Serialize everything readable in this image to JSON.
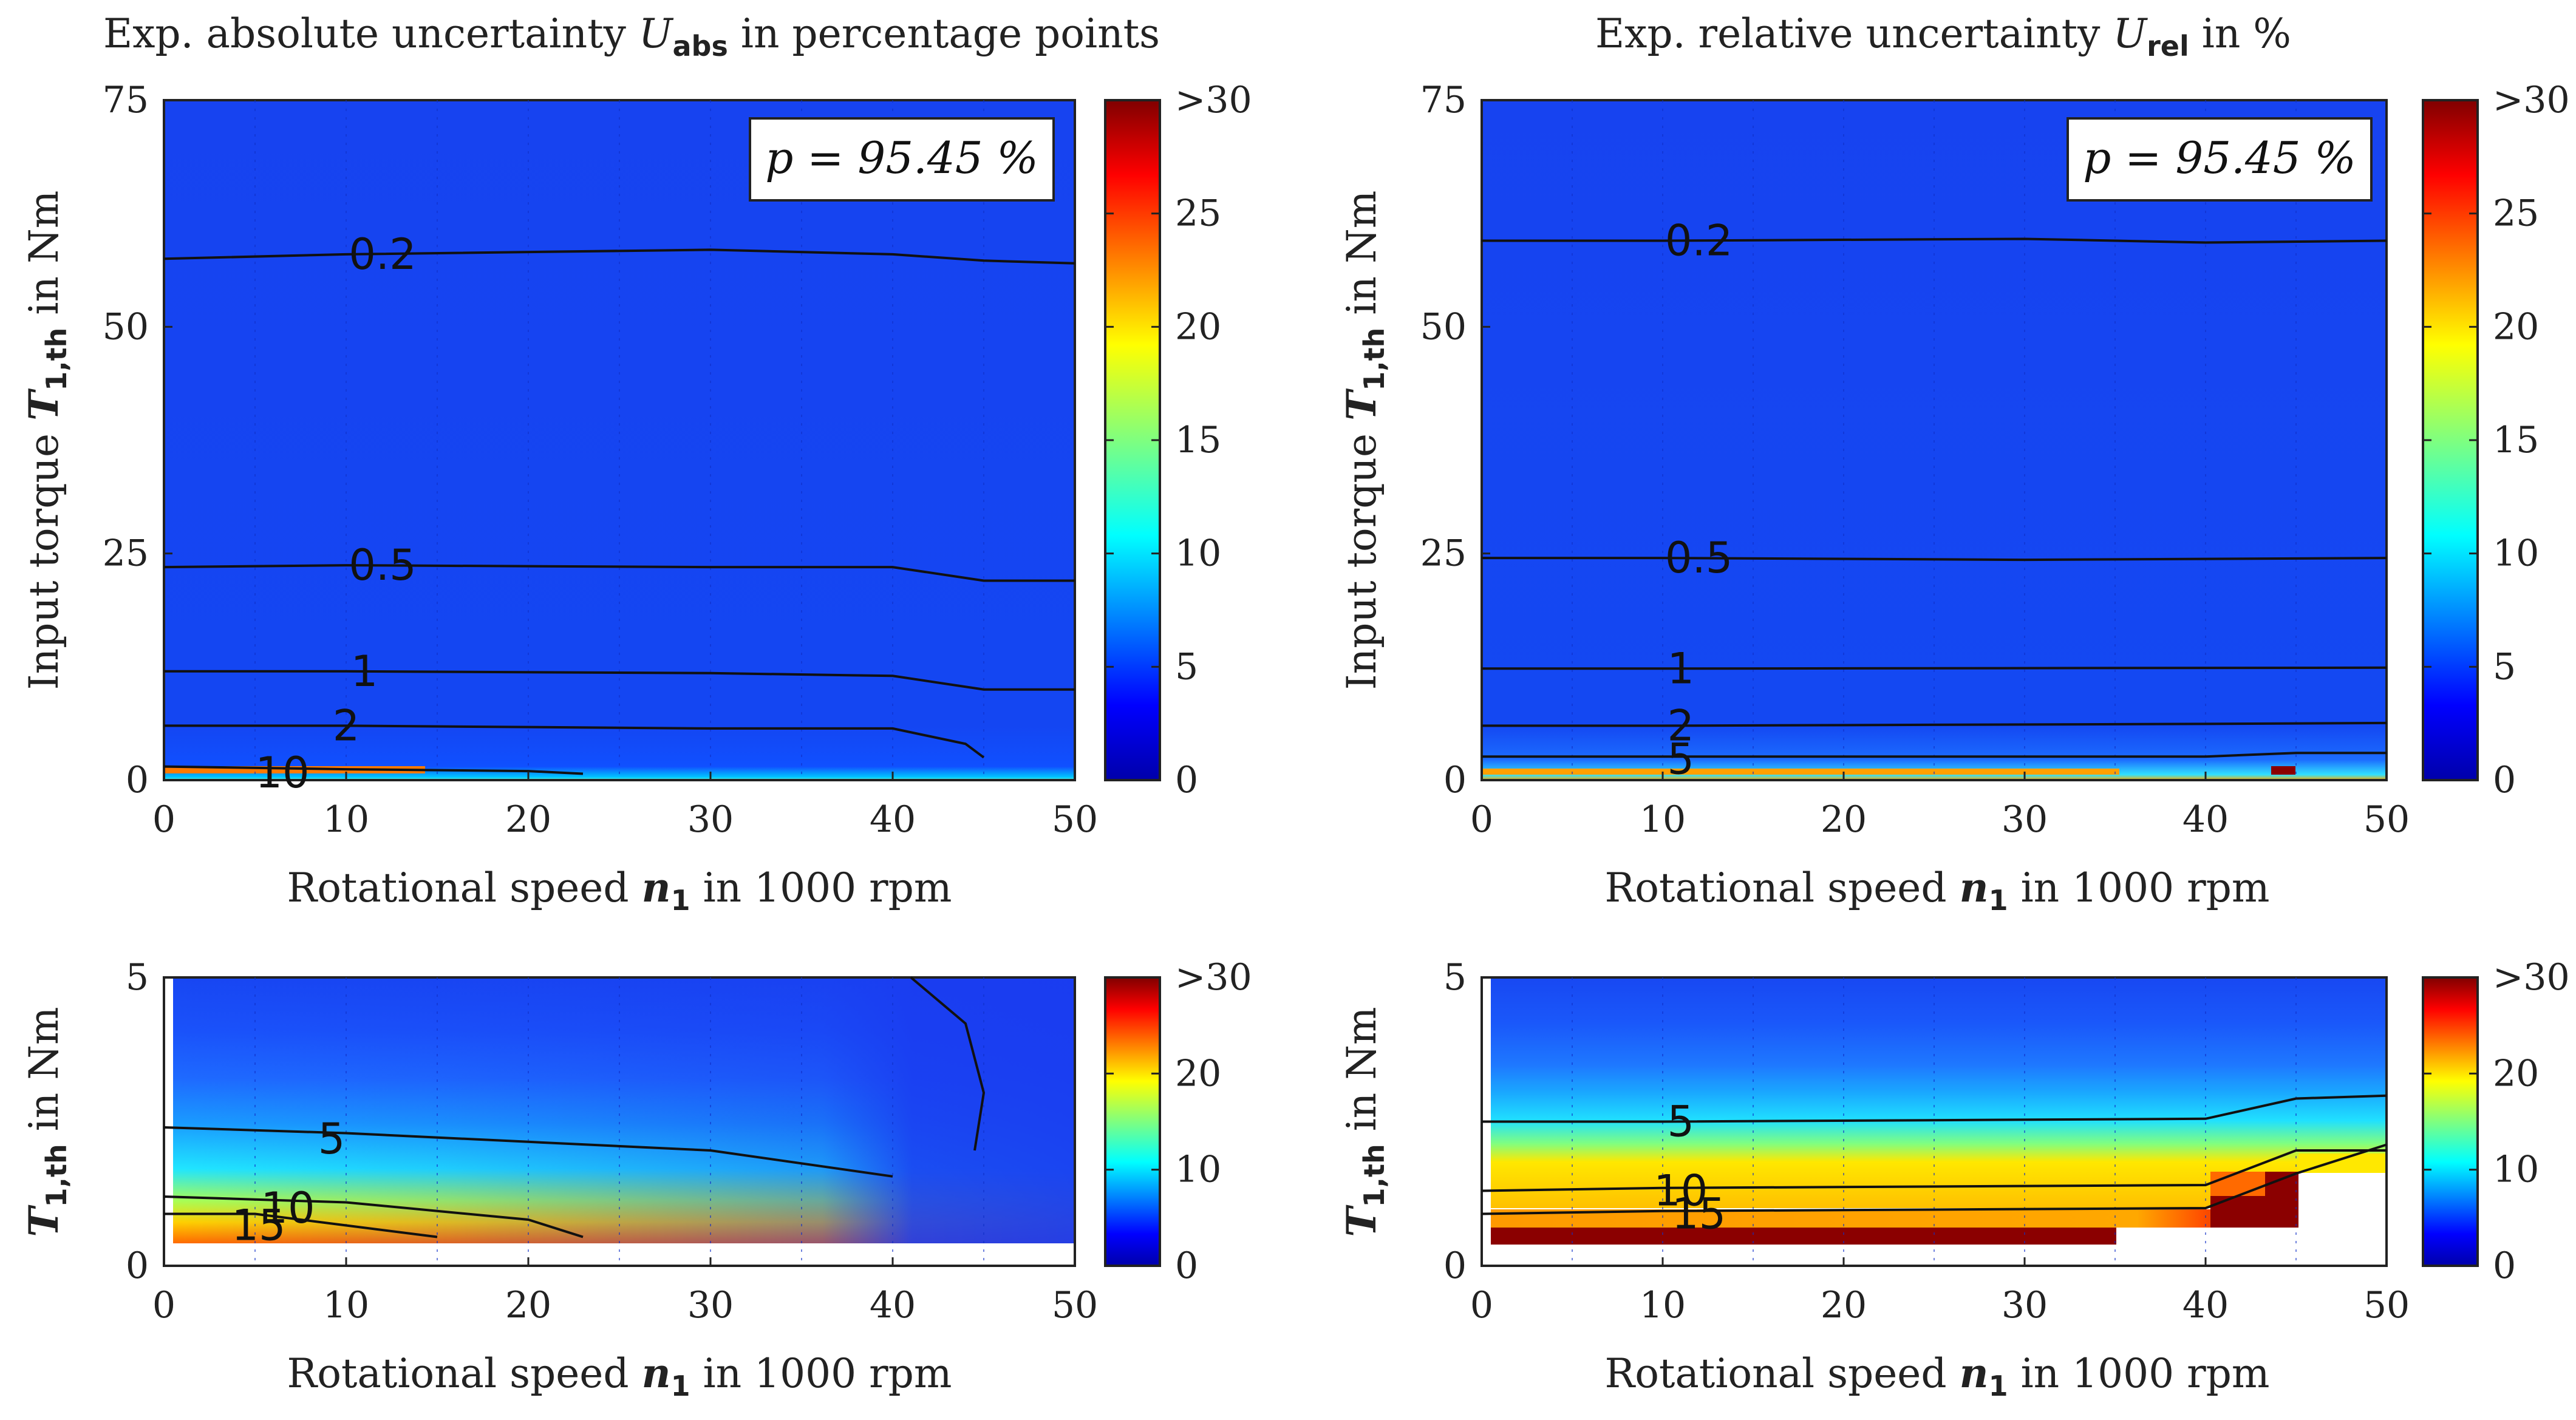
{
  "chart_data": [
    {
      "id": "abs_top",
      "type": "heatmap",
      "title_prefix": "Exp. absolute uncertainty ",
      "title_sym": "U",
      "title_sub": "abs",
      "title_suffix": " in percentage points",
      "xlabel_prefix": "Rotational speed ",
      "xlabel_sym": "n",
      "xlabel_sub": "1",
      "xlabel_suffix": " in 1000 rpm",
      "ylabel_prefix": "Input torque ",
      "ylabel_sym": "T",
      "ylabel_sub": "1,th",
      "ylabel_suffix": " in Nm",
      "xlim": [
        0,
        50
      ],
      "ylim": [
        0,
        75
      ],
      "xticks": [
        0,
        10,
        20,
        30,
        40,
        50
      ],
      "yticks": [
        0,
        25,
        50,
        75
      ],
      "colorbar": {
        "min": 0,
        "max": 30,
        "ticks": [
          "0",
          "5",
          "10",
          "15",
          "20",
          "25",
          ">30"
        ]
      },
      "annotation": "p = 95.45 %",
      "contours": [
        {
          "level": "0.2",
          "points": [
            [
              0,
              57.5
            ],
            [
              10,
              58
            ],
            [
              30,
              58.5
            ],
            [
              40,
              58
            ],
            [
              45,
              57.3
            ],
            [
              50,
              57
            ]
          ]
        },
        {
          "level": "0.5",
          "points": [
            [
              0,
              23.5
            ],
            [
              10,
              23.7
            ],
            [
              30,
              23.5
            ],
            [
              40,
              23.5
            ],
            [
              45,
              22
            ],
            [
              50,
              22
            ]
          ]
        },
        {
          "level": "1",
          "points": [
            [
              0,
              12
            ],
            [
              10,
              12
            ],
            [
              30,
              11.8
            ],
            [
              40,
              11.5
            ],
            [
              45,
              10
            ],
            [
              50,
              10
            ]
          ]
        },
        {
          "level": "2",
          "points": [
            [
              0,
              6
            ],
            [
              10,
              6
            ],
            [
              30,
              5.7
            ],
            [
              40,
              5.7
            ],
            [
              44,
              4
            ],
            [
              45,
              2.5
            ]
          ]
        },
        {
          "level": "10",
          "points": [
            [
              0,
              1.5
            ],
            [
              10,
              1.2
            ],
            [
              20,
              1
            ],
            [
              23,
              0.7
            ]
          ]
        }
      ],
      "contour_labels": [
        {
          "text": "0.2",
          "x": 12,
          "y": 58
        },
        {
          "text": "0.5",
          "x": 12,
          "y": 23.7
        },
        {
          "text": "1",
          "x": 11,
          "y": 12
        },
        {
          "text": "2",
          "x": 10,
          "y": 6
        },
        {
          "text": "10",
          "x": 6.5,
          "y": 0.8
        }
      ]
    },
    {
      "id": "rel_top",
      "type": "heatmap",
      "title_prefix": "Exp. relative uncertainty ",
      "title_sym": "U",
      "title_sub": "rel",
      "title_suffix": " in %",
      "xlabel_prefix": "Rotational speed ",
      "xlabel_sym": "n",
      "xlabel_sub": "1",
      "xlabel_suffix": " in 1000 rpm",
      "ylabel_prefix": "Input torque ",
      "ylabel_sym": "T",
      "ylabel_sub": "1,th",
      "ylabel_suffix": " in Nm",
      "xlim": [
        0,
        50
      ],
      "ylim": [
        0,
        75
      ],
      "xticks": [
        0,
        10,
        20,
        30,
        40,
        50
      ],
      "yticks": [
        0,
        25,
        50,
        75
      ],
      "colorbar": {
        "min": 0,
        "max": 30,
        "ticks": [
          "0",
          "5",
          "10",
          "15",
          "20",
          "25",
          ">30"
        ]
      },
      "annotation": "p = 95.45 %",
      "contours": [
        {
          "level": "0.2",
          "points": [
            [
              0,
              59.5
            ],
            [
              10,
              59.5
            ],
            [
              30,
              59.7
            ],
            [
              40,
              59.3
            ],
            [
              50,
              59.5
            ]
          ]
        },
        {
          "level": "0.5",
          "points": [
            [
              0,
              24.5
            ],
            [
              10,
              24.5
            ],
            [
              30,
              24.3
            ],
            [
              50,
              24.5
            ]
          ]
        },
        {
          "level": "1",
          "points": [
            [
              0,
              12.3
            ],
            [
              10,
              12.3
            ],
            [
              50,
              12.4
            ]
          ]
        },
        {
          "level": "2",
          "points": [
            [
              0,
              6
            ],
            [
              10,
              6
            ],
            [
              40,
              6.2
            ],
            [
              50,
              6.3
            ]
          ]
        },
        {
          "level": "5",
          "points": [
            [
              0,
              2.6
            ],
            [
              10,
              2.6
            ],
            [
              40,
              2.6
            ],
            [
              45,
              3
            ],
            [
              50,
              3
            ]
          ]
        }
      ],
      "contour_labels": [
        {
          "text": "0.2",
          "x": 12,
          "y": 59.5
        },
        {
          "text": "0.5",
          "x": 12,
          "y": 24.5
        },
        {
          "text": "1",
          "x": 11,
          "y": 12.3
        },
        {
          "text": "2",
          "x": 11,
          "y": 6
        },
        {
          "text": "5",
          "x": 11,
          "y": 2.3
        }
      ]
    },
    {
      "id": "abs_bottom",
      "type": "heatmap",
      "xlabel_prefix": "Rotational speed ",
      "xlabel_sym": "n",
      "xlabel_sub": "1",
      "xlabel_suffix": " in 1000 rpm",
      "ylabel_prefix": "",
      "ylabel_sym": "T",
      "ylabel_sub": "1,th",
      "ylabel_suffix": " in Nm",
      "xlim": [
        0,
        50
      ],
      "ylim": [
        0,
        5
      ],
      "xticks": [
        0,
        10,
        20,
        30,
        40,
        50
      ],
      "yticks": [
        0,
        5
      ],
      "colorbar": {
        "min": 0,
        "max": 30,
        "ticks": [
          "0",
          "10",
          "20",
          ">30"
        ]
      },
      "contours": [
        {
          "level": "5",
          "points": [
            [
              0,
              2.4
            ],
            [
              10,
              2.3
            ],
            [
              20,
              2.15
            ],
            [
              30,
              2
            ],
            [
              40,
              1.55
            ]
          ]
        },
        {
          "level": "5",
          "points": [
            [
              41,
              5
            ],
            [
              44,
              4.2
            ],
            [
              45,
              3
            ],
            [
              44.5,
              2
            ]
          ]
        },
        {
          "level": "10",
          "points": [
            [
              0,
              1.2
            ],
            [
              10,
              1.1
            ],
            [
              20,
              0.8
            ],
            [
              23,
              0.5
            ]
          ]
        },
        {
          "level": "15",
          "points": [
            [
              0,
              0.9
            ],
            [
              5,
              0.9
            ],
            [
              10,
              0.7
            ],
            [
              15,
              0.5
            ]
          ]
        }
      ],
      "contour_labels": [
        {
          "text": "5",
          "x": 9.2,
          "y": 2.2
        },
        {
          "text": "10",
          "x": 6.8,
          "y": 1.0
        },
        {
          "text": "15",
          "x": 5.2,
          "y": 0.7
        }
      ]
    },
    {
      "id": "rel_bottom",
      "type": "heatmap",
      "xlabel_prefix": "Rotational speed ",
      "xlabel_sym": "n",
      "xlabel_sub": "1",
      "xlabel_suffix": " in 1000 rpm",
      "ylabel_prefix": "",
      "ylabel_sym": "T",
      "ylabel_sub": "1,th",
      "ylabel_suffix": " in Nm",
      "xlim": [
        0,
        50
      ],
      "ylim": [
        0,
        5
      ],
      "xticks": [
        0,
        10,
        20,
        30,
        40,
        50
      ],
      "yticks": [
        0,
        5
      ],
      "colorbar": {
        "min": 0,
        "max": 30,
        "ticks": [
          "0",
          "10",
          "20",
          ">30"
        ]
      },
      "contours": [
        {
          "level": "5",
          "points": [
            [
              0,
              2.5
            ],
            [
              10,
              2.5
            ],
            [
              40,
              2.55
            ],
            [
              45,
              2.9
            ],
            [
              50,
              2.95
            ]
          ]
        },
        {
          "level": "10",
          "points": [
            [
              0,
              1.3
            ],
            [
              10,
              1.35
            ],
            [
              40,
              1.4
            ],
            [
              45,
              2.0
            ],
            [
              50,
              2.0
            ]
          ]
        },
        {
          "level": "15",
          "points": [
            [
              0,
              0.9
            ],
            [
              10,
              0.95
            ],
            [
              40,
              1.0
            ],
            [
              45,
              1.6
            ],
            [
              50,
              2.1
            ]
          ]
        }
      ],
      "contour_labels": [
        {
          "text": "5",
          "x": 11,
          "y": 2.5
        },
        {
          "text": "10",
          "x": 11,
          "y": 1.3
        },
        {
          "text": "15",
          "x": 12,
          "y": 0.9
        }
      ]
    }
  ]
}
